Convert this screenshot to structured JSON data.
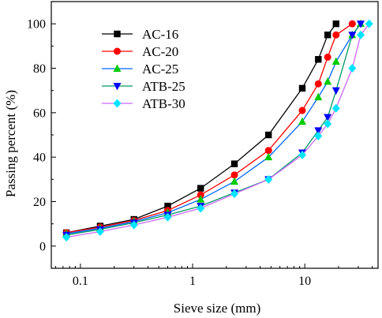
{
  "chart_data": {
    "type": "line",
    "xlabel": "Sieve size (mm)",
    "ylabel": "Passing percent (%)",
    "x_scale": "log",
    "xlim": [
      0.055,
      45
    ],
    "ylim": [
      -10,
      110
    ],
    "x_ticks": [
      0.1,
      1,
      10
    ],
    "x_tick_labels": [
      "0.1",
      "1",
      "10"
    ],
    "y_ticks": [
      0,
      20,
      40,
      60,
      80,
      100
    ],
    "y_tick_labels": [
      "0",
      "20",
      "40",
      "60",
      "80",
      "100"
    ],
    "grid": false,
    "legend_position": "top-left",
    "series": [
      {
        "name": "AC-16",
        "color": "#000000",
        "marker": "square",
        "x": [
          0.075,
          0.15,
          0.3,
          0.6,
          1.18,
          2.36,
          4.75,
          9.5,
          13.2,
          16,
          19
        ],
        "y": [
          6,
          9,
          12,
          18,
          26,
          37,
          50,
          71,
          84,
          95,
          100
        ]
      },
      {
        "name": "AC-20",
        "color": "#ff0000",
        "marker": "circle",
        "x": [
          0.075,
          0.15,
          0.3,
          0.6,
          1.18,
          2.36,
          4.75,
          9.5,
          13.2,
          16,
          19,
          26.5
        ],
        "y": [
          6,
          8.5,
          11.5,
          16,
          23,
          32,
          43,
          61,
          73,
          85,
          95,
          100
        ]
      },
      {
        "name": "AC-25",
        "color": "#00cc00",
        "marker": "triangle-up",
        "x": [
          0.075,
          0.15,
          0.3,
          0.6,
          1.18,
          2.36,
          4.75,
          9.5,
          13.2,
          16,
          19,
          26.5,
          31.5
        ],
        "y": [
          5.5,
          8,
          11,
          15,
          21,
          29,
          40,
          56,
          67,
          74,
          83,
          95,
          100
        ]
      },
      {
        "name": "ATB-25",
        "color": "#0000ff",
        "marker": "triangle-down",
        "x": [
          0.075,
          0.15,
          0.3,
          0.6,
          1.18,
          2.36,
          4.75,
          9.5,
          13.2,
          16,
          19,
          26.5,
          31.5
        ],
        "y": [
          5,
          7.5,
          10.5,
          14,
          18,
          24,
          30,
          42,
          52,
          58,
          70,
          95,
          100
        ]
      },
      {
        "name": "ATB-30",
        "color": "#00e5ff",
        "marker": "diamond",
        "x": [
          0.075,
          0.15,
          0.3,
          0.6,
          1.18,
          2.36,
          4.75,
          9.5,
          13.2,
          16,
          19,
          26.5,
          31.5,
          37.5
        ],
        "y": [
          4,
          6.5,
          9.5,
          13,
          17,
          23.5,
          30,
          41,
          49.5,
          55,
          62,
          80,
          95,
          100
        ]
      }
    ]
  },
  "legend_line_colors": {
    "AC-16": "#000000",
    "AC-20": "#ff0000",
    "AC-25": "#0066ff",
    "ATB-25": "#009966",
    "ATB-30": "#cc66ff"
  }
}
